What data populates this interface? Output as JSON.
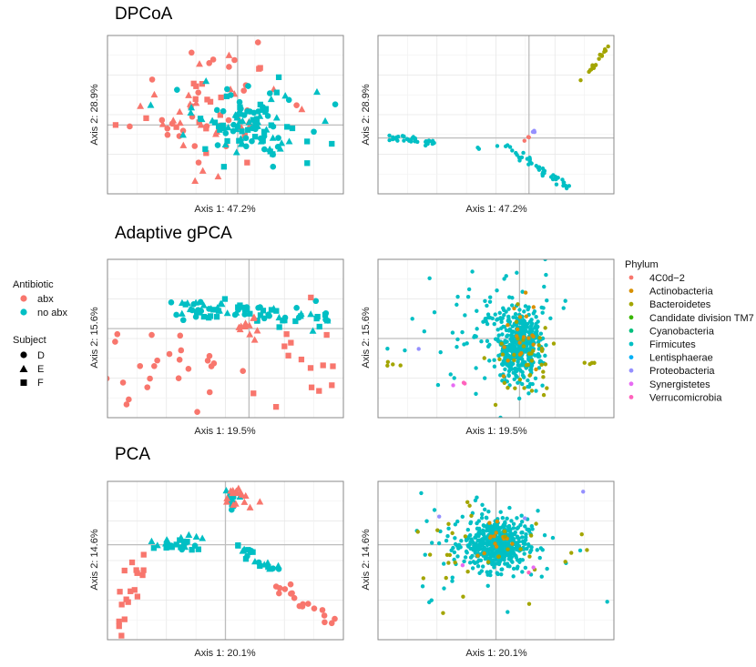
{
  "colors": {
    "abx": "#F8766D",
    "no_abx": "#00BFC4",
    "grid_minor": "#f2f2f2",
    "grid_major": "#e6e6e6",
    "zero_line": "#bdbdbd",
    "frame": "#8a8a8a"
  },
  "legends": {
    "antibiotic": {
      "title": "Antibiotic",
      "items": [
        {
          "label": "abx",
          "color": "#F8766D"
        },
        {
          "label": "no abx",
          "color": "#00BFC4"
        }
      ]
    },
    "subject": {
      "title": "Subject",
      "items": [
        {
          "label": "D",
          "shape": "circle"
        },
        {
          "label": "E",
          "shape": "triangle"
        },
        {
          "label": "F",
          "shape": "square"
        }
      ]
    },
    "phylum": {
      "title": "Phylum",
      "items": [
        {
          "label": "4C0d−2",
          "color": "#F8766D"
        },
        {
          "label": "Actinobacteria",
          "color": "#D89000"
        },
        {
          "label": "Bacteroidetes",
          "color": "#A3A500"
        },
        {
          "label": "Candidate division TM7",
          "color": "#39B600"
        },
        {
          "label": "Cyanobacteria",
          "color": "#00BF7D"
        },
        {
          "label": "Firmicutes",
          "color": "#00BFC4"
        },
        {
          "label": "Lentisphaerae",
          "color": "#00B0F6"
        },
        {
          "label": "Proteobacteria",
          "color": "#9590FF"
        },
        {
          "label": "Synergistetes",
          "color": "#E76BF3"
        },
        {
          "label": "Verrucomicrobia",
          "color": "#FF62BC"
        }
      ]
    }
  },
  "chart_data": [
    {
      "type": "scatter",
      "panel": "dpcoa-samples",
      "title": "DPCoA",
      "xlabel": "Axis 1: 47.2%",
      "ylabel": "Axis 2: 28.9%",
      "xlim": [
        -1.6,
        1.3
      ],
      "ylim": [
        -1.0,
        1.3
      ],
      "clusters": [
        {
          "group": "abx",
          "cx": -0.4,
          "cy": 0.2,
          "sx": 0.45,
          "sy": 0.42,
          "n": 70,
          "shapes": "mixed"
        },
        {
          "group": "no abx",
          "cx": 0.15,
          "cy": 0.0,
          "sx": 0.35,
          "sy": 0.25,
          "n": 110,
          "shapes": "mixed"
        }
      ],
      "points": [
        {
          "x": -1.5,
          "y": 0.0,
          "group": "abx",
          "subject": "F"
        },
        {
          "x": 0.25,
          "y": 1.2,
          "group": "abx",
          "subject": "D"
        },
        {
          "x": 1.2,
          "y": 0.3,
          "group": "no abx",
          "subject": "D"
        },
        {
          "x": -0.3,
          "y": 0.95,
          "group": "abx",
          "subject": "D"
        }
      ]
    },
    {
      "type": "scatter",
      "panel": "dpcoa-taxa",
      "xlabel": "Axis 1: 47.2%",
      "ylabel": "Axis 2: 28.9%",
      "xlim": [
        -1.6,
        0.9
      ],
      "ylim": [
        -0.6,
        1.1
      ],
      "clusters": [
        {
          "phylum": "Firmicutes",
          "from": [
            -1.5,
            0.0
          ],
          "to": [
            -1.0,
            -0.05
          ],
          "n": 35,
          "jitter": 0.02
        },
        {
          "phylum": "Firmicutes",
          "from": [
            -0.15,
            -0.15
          ],
          "to": [
            0.45,
            -0.55
          ],
          "n": 40,
          "jitter": 0.02
        },
        {
          "phylum": "Firmicutes",
          "from": [
            -0.6,
            -0.1
          ],
          "to": [
            -0.2,
            -0.1
          ],
          "n": 6,
          "jitter": 0.01
        },
        {
          "phylum": "Bacteroidetes",
          "from": [
            0.55,
            0.6
          ],
          "to": [
            0.85,
            1.0
          ],
          "n": 18,
          "jitter": 0.015
        },
        {
          "phylum": "Proteobacteria",
          "from": [
            0.02,
            0.05
          ],
          "to": [
            0.06,
            0.08
          ],
          "n": 4,
          "jitter": 0.01
        },
        {
          "phylum": "4C0d−2",
          "from": [
            -0.05,
            -0.02
          ],
          "to": [
            0.0,
            0.02
          ],
          "n": 3,
          "jitter": 0.01
        }
      ]
    },
    {
      "type": "scatter",
      "panel": "gpca-samples",
      "title": "Adaptive gPCA",
      "xlabel": "Axis 1: 19.5%",
      "ylabel": "Axis 2: 15.6%",
      "xlim": [
        -1.5,
        1.0
      ],
      "ylim": [
        -0.9,
        0.7
      ],
      "clusters": [
        {
          "group": "no abx",
          "from": [
            -0.8,
            0.2
          ],
          "to": [
            0.85,
            0.12
          ],
          "n": 80,
          "jitter": 0.05,
          "shapes": "mixed"
        },
        {
          "group": "abx",
          "cx": -0.9,
          "cy": -0.35,
          "sx": 0.35,
          "sy": 0.22,
          "n": 28,
          "shapes": "circle"
        },
        {
          "group": "abx",
          "cx": 0.0,
          "cy": 0.0,
          "sx": 0.08,
          "sy": 0.08,
          "n": 12,
          "shapes": "triangle"
        },
        {
          "group": "abx",
          "cx": 0.65,
          "cy": -0.4,
          "sx": 0.15,
          "sy": 0.3,
          "n": 16,
          "shapes": "square"
        }
      ]
    },
    {
      "type": "scatter",
      "panel": "gpca-taxa",
      "xlabel": "Axis 1: 19.5%",
      "ylabel": "Axis 2: 15.6%",
      "xlim": [
        -1.5,
        1.0
      ],
      "ylim": [
        -0.9,
        0.9
      ],
      "clusters": [
        {
          "phylum": "Firmicutes",
          "cx": 0.0,
          "cy": -0.1,
          "sx": 0.12,
          "sy": 0.2,
          "n": 420
        },
        {
          "phylum": "Firmicutes",
          "cx": -0.3,
          "cy": 0.15,
          "sx": 0.35,
          "sy": 0.35,
          "n": 90
        },
        {
          "phylum": "Bacteroidetes",
          "cx": 0.05,
          "cy": -0.15,
          "sx": 0.15,
          "sy": 0.3,
          "n": 40
        },
        {
          "phylum": "Actinobacteria",
          "cx": 0.05,
          "cy": 0.0,
          "sx": 0.1,
          "sy": 0.2,
          "n": 20
        },
        {
          "phylum": "Bacteroidetes",
          "cx": -1.35,
          "cy": -0.3,
          "sx": 0.04,
          "sy": 0.02,
          "n": 4
        },
        {
          "phylum": "Bacteroidetes",
          "cx": 0.75,
          "cy": -0.3,
          "sx": 0.04,
          "sy": 0.02,
          "n": 4
        },
        {
          "phylum": "Proteobacteria",
          "cx": -1.1,
          "cy": -0.1,
          "sx": 0.02,
          "sy": 0.02,
          "n": 1
        },
        {
          "phylum": "Synergistetes",
          "cx": -0.7,
          "cy": -0.55,
          "sx": 0.02,
          "sy": 0.02,
          "n": 1
        },
        {
          "phylum": "Verrucomicrobia",
          "cx": -0.6,
          "cy": -0.5,
          "sx": 0.02,
          "sy": 0.02,
          "n": 2
        }
      ]
    },
    {
      "type": "scatter",
      "panel": "pca-samples",
      "title": "PCA",
      "xlabel": "Axis 1: 20.1%",
      "ylabel": "Axis 2: 14.6%",
      "xlim": [
        -0.9,
        0.9
      ],
      "ylim": [
        -0.9,
        0.6
      ],
      "clusters": [
        {
          "group": "no abx",
          "from": [
            -0.5,
            0.0
          ],
          "to": [
            -0.2,
            0.0
          ],
          "n": 26,
          "jitter": 0.04,
          "shapes": "mixed"
        },
        {
          "group": "no abx",
          "from": [
            0.1,
            -0.05
          ],
          "to": [
            0.4,
            -0.25
          ],
          "n": 22,
          "jitter": 0.03,
          "shapes": "mixed"
        },
        {
          "group": "no abx",
          "cx": 0.05,
          "cy": 0.4,
          "sx": 0.04,
          "sy": 0.05,
          "n": 10,
          "shapes": "mixed"
        },
        {
          "group": "abx",
          "cx": 0.1,
          "cy": 0.45,
          "sx": 0.06,
          "sy": 0.06,
          "n": 16,
          "shapes": "triangle"
        },
        {
          "group": "abx",
          "from": [
            -0.8,
            -0.85
          ],
          "to": [
            -0.6,
            -0.1
          ],
          "n": 18,
          "jitter": 0.05,
          "shapes": "square"
        },
        {
          "group": "abx",
          "from": [
            0.4,
            -0.3
          ],
          "to": [
            0.82,
            -0.8
          ],
          "n": 18,
          "jitter": 0.05,
          "shapes": "circle"
        }
      ]
    },
    {
      "type": "scatter",
      "panel": "pca-taxa",
      "xlabel": "Axis 1: 20.1%",
      "ylabel": "Axis 2: 14.6%",
      "xlim": [
        -0.9,
        0.9
      ],
      "ylim": [
        -0.9,
        0.6
      ],
      "clusters": [
        {
          "phylum": "Firmicutes",
          "cx": 0.0,
          "cy": 0.0,
          "sx": 0.12,
          "sy": 0.12,
          "n": 480
        },
        {
          "phylum": "Firmicutes",
          "cx": 0.0,
          "cy": 0.0,
          "sx": 0.3,
          "sy": 0.25,
          "n": 70
        },
        {
          "phylum": "Actinobacteria",
          "cx": 0.0,
          "cy": 0.05,
          "sx": 0.08,
          "sy": 0.1,
          "n": 15
        },
        {
          "phylum": "Bacteroidetes",
          "cx": 0.0,
          "cy": 0.0,
          "sx": 0.4,
          "sy": 0.3,
          "n": 35
        },
        {
          "phylum": "Proteobacteria",
          "cx": -0.05,
          "cy": 0.3,
          "sx": 0.3,
          "sy": 0.2,
          "n": 3
        },
        {
          "phylum": "Synergistetes",
          "cx": 0.0,
          "cy": -0.2,
          "sx": 0.2,
          "sy": 0.1,
          "n": 2
        },
        {
          "phylum": "Verrucomicrobia",
          "cx": 0.3,
          "cy": -0.2,
          "sx": 0.1,
          "sy": 0.1,
          "n": 1
        }
      ]
    }
  ]
}
